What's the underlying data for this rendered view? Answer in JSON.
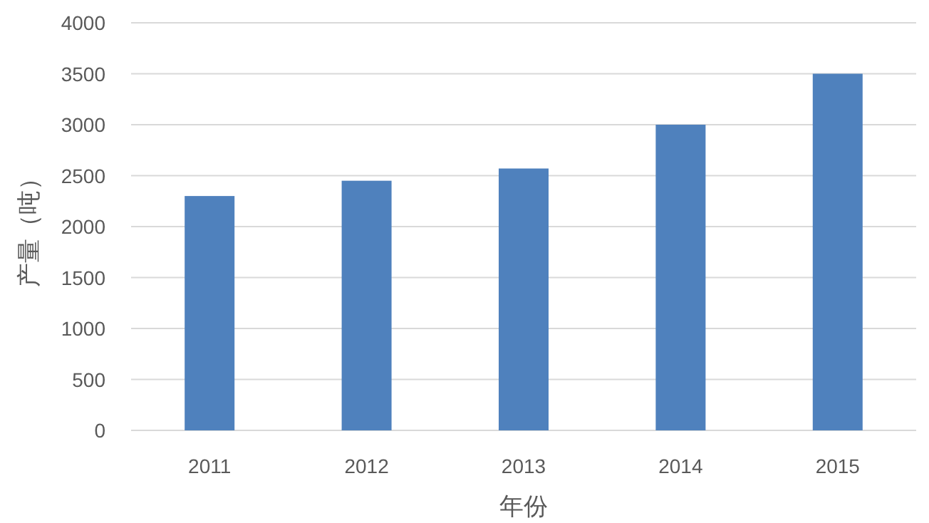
{
  "chart_data": {
    "type": "bar",
    "xlabel": "年份",
    "ylabel": "产量（吨）",
    "categories": [
      "2011",
      "2012",
      "2013",
      "2014",
      "2015"
    ],
    "values": [
      2300,
      2450,
      2570,
      3000,
      3500
    ],
    "color": "#4f81bd",
    "ylim": [
      0,
      4000
    ],
    "yticks": [
      0,
      500,
      1000,
      1500,
      2000,
      2500,
      3000,
      3500,
      4000
    ],
    "grid": "y"
  }
}
